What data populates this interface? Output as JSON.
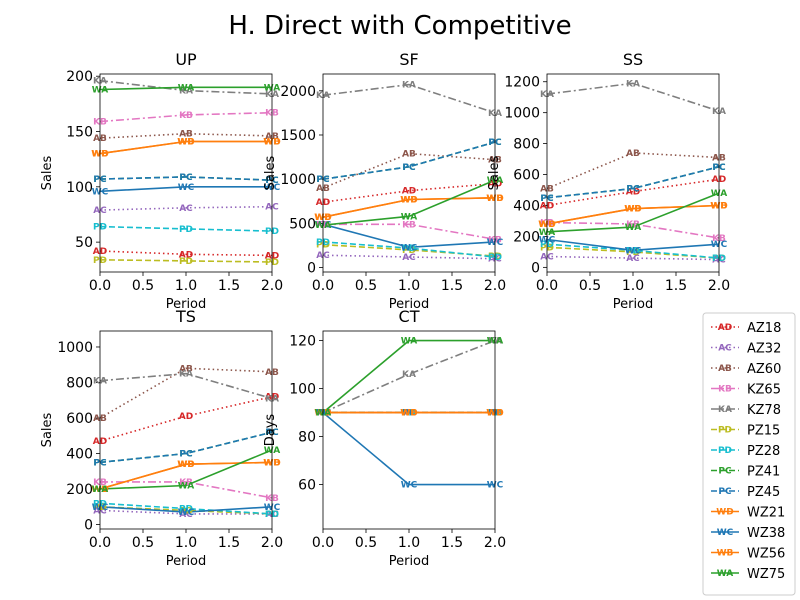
{
  "chart_data": {
    "title": "H. Direct with Competitive",
    "type": "line",
    "x": [
      0,
      1,
      2
    ],
    "legend": {
      "placement": "right",
      "entries": [
        {
          "name": "AZ18",
          "marker": "AD",
          "color": "#d62728",
          "style": "dotted"
        },
        {
          "name": "AZ32",
          "marker": "AC",
          "color": "#9467bd",
          "style": "dotted"
        },
        {
          "name": "AZ60",
          "marker": "AB",
          "color": "#8c564b",
          "style": "dotted"
        },
        {
          "name": "KZ65",
          "marker": "KB",
          "color": "#e377c2",
          "style": "dashdot"
        },
        {
          "name": "KZ78",
          "marker": "KA",
          "color": "#7f7f7f",
          "style": "dashdot"
        },
        {
          "name": "PZ15",
          "marker": "PD",
          "color": "#bcbd22",
          "style": "dashed"
        },
        {
          "name": "PZ28",
          "marker": "PD",
          "color": "#17becf",
          "style": "dashed"
        },
        {
          "name": "PZ41",
          "marker": "PC",
          "color": "#2ca02c",
          "style": "dashed"
        },
        {
          "name": "PZ45",
          "marker": "PC",
          "color": "#1f77b4",
          "style": "dashed"
        },
        {
          "name": "WZ21",
          "marker": "WD",
          "color": "#ff7f0e",
          "style": "solid"
        },
        {
          "name": "WZ38",
          "marker": "WC",
          "color": "#1f77b4",
          "style": "solid"
        },
        {
          "name": "WZ56",
          "marker": "WB",
          "color": "#ff7f0e",
          "style": "solid"
        },
        {
          "name": "WZ75",
          "marker": "WA",
          "color": "#2ca02c",
          "style": "solid"
        }
      ]
    },
    "panels": [
      {
        "title": "UP",
        "xlabel": "Period",
        "ylabel": "Sales",
        "xlim": [
          0,
          2
        ],
        "ylim": [
          23,
          202
        ],
        "xticks": [
          "0.0",
          "0.5",
          "1.0",
          "1.5",
          "2.0"
        ],
        "yticks": [
          50,
          100,
          150,
          200
        ],
        "series": [
          {
            "name": "AZ18",
            "values": [
              42,
              39,
              38
            ]
          },
          {
            "name": "AZ32",
            "values": [
              79,
              81,
              82
            ]
          },
          {
            "name": "AZ60",
            "values": [
              144,
              148,
              146
            ]
          },
          {
            "name": "KZ65",
            "values": [
              159,
              165,
              167
            ]
          },
          {
            "name": "KZ78",
            "values": [
              196,
              187,
              184
            ]
          },
          {
            "name": "PZ15",
            "values": [
              34,
              33,
              32
            ]
          },
          {
            "name": "PZ28",
            "values": [
              64,
              62,
              60
            ]
          },
          {
            "name": "PZ41",
            "values": [
              107,
              109,
              106
            ]
          },
          {
            "name": "PZ45",
            "values": [
              107,
              109,
              106
            ]
          },
          {
            "name": "WZ21",
            "values": [
              130,
              141,
              141
            ]
          },
          {
            "name": "WZ38",
            "values": [
              96,
              100,
              100
            ]
          },
          {
            "name": "WZ56",
            "values": [
              130,
              141,
              141
            ]
          },
          {
            "name": "WZ75",
            "values": [
              188,
              190,
              190
            ]
          }
        ]
      },
      {
        "title": "SF",
        "xlabel": "Period",
        "ylabel": "Sales",
        "xlim": [
          0,
          2
        ],
        "ylim": [
          -50,
          2190
        ],
        "xticks": [
          "0.0",
          "0.5",
          "1.0",
          "1.5",
          "2.0"
        ],
        "yticks": [
          0,
          500,
          1000,
          1500,
          2000
        ],
        "series": [
          {
            "name": "AZ18",
            "values": [
              740,
              870,
              950
            ]
          },
          {
            "name": "AZ32",
            "values": [
              140,
              120,
              100
            ]
          },
          {
            "name": "AZ60",
            "values": [
              900,
              1290,
              1220
            ]
          },
          {
            "name": "KZ65",
            "values": [
              490,
              490,
              320
            ]
          },
          {
            "name": "KZ78",
            "values": [
              1950,
              2070,
              1750
            ]
          },
          {
            "name": "PZ15",
            "values": [
              260,
              200,
              130
            ]
          },
          {
            "name": "PZ28",
            "values": [
              290,
              220,
              120
            ]
          },
          {
            "name": "PZ41",
            "values": [
              1000,
              1140,
              1420
            ]
          },
          {
            "name": "PZ45",
            "values": [
              1000,
              1140,
              1420
            ]
          },
          {
            "name": "WZ21",
            "values": [
              570,
              770,
              790
            ]
          },
          {
            "name": "WZ38",
            "values": [
              490,
              230,
              290
            ]
          },
          {
            "name": "WZ56",
            "values": [
              570,
              770,
              790
            ]
          },
          {
            "name": "WZ75",
            "values": [
              480,
              580,
              990
            ]
          }
        ]
      },
      {
        "title": "SS",
        "xlabel": "Period",
        "ylabel": "Sales",
        "xlim": [
          0,
          2
        ],
        "ylim": [
          -30,
          1250
        ],
        "xticks": [
          "0.0",
          "0.5",
          "1.0",
          "1.5",
          "2.0"
        ],
        "yticks": [
          0,
          200,
          400,
          600,
          800,
          1000,
          1200
        ],
        "series": [
          {
            "name": "AZ18",
            "values": [
              400,
              490,
              570
            ]
          },
          {
            "name": "AZ32",
            "values": [
              70,
              60,
              50
            ]
          },
          {
            "name": "AZ60",
            "values": [
              510,
              740,
              710
            ]
          },
          {
            "name": "KZ65",
            "values": [
              290,
              280,
              190
            ]
          },
          {
            "name": "KZ78",
            "values": [
              1120,
              1190,
              1010
            ]
          },
          {
            "name": "PZ15",
            "values": [
              130,
              100,
              60
            ]
          },
          {
            "name": "PZ28",
            "values": [
              150,
              110,
              60
            ]
          },
          {
            "name": "PZ41",
            "values": [
              450,
              510,
              650
            ]
          },
          {
            "name": "PZ45",
            "values": [
              450,
              510,
              650
            ]
          },
          {
            "name": "WZ21",
            "values": [
              280,
              380,
              400
            ]
          },
          {
            "name": "WZ38",
            "values": [
              180,
              110,
              150
            ]
          },
          {
            "name": "WZ56",
            "values": [
              280,
              380,
              400
            ]
          },
          {
            "name": "WZ75",
            "values": [
              230,
              260,
              480
            ]
          }
        ]
      },
      {
        "title": "TS",
        "xlabel": "Period",
        "ylabel": "Sales",
        "xlim": [
          0,
          2
        ],
        "ylim": [
          -25,
          1090
        ],
        "xticks": [
          "0.0",
          "0.5",
          "1.0",
          "1.5",
          "2.0"
        ],
        "yticks": [
          0,
          200,
          400,
          600,
          800,
          1000
        ],
        "series": [
          {
            "name": "AZ18",
            "values": [
              470,
              610,
              720
            ]
          },
          {
            "name": "AZ32",
            "values": [
              80,
              60,
              60
            ]
          },
          {
            "name": "AZ60",
            "values": [
              600,
              880,
              860
            ]
          },
          {
            "name": "KZ65",
            "values": [
              240,
              240,
              150
            ]
          },
          {
            "name": "KZ78",
            "values": [
              810,
              850,
              710
            ]
          },
          {
            "name": "PZ15",
            "values": [
              100,
              80,
              60
            ]
          },
          {
            "name": "PZ28",
            "values": [
              120,
              90,
              60
            ]
          },
          {
            "name": "PZ41",
            "values": [
              350,
              400,
              520
            ]
          },
          {
            "name": "PZ45",
            "values": [
              350,
              400,
              520
            ]
          },
          {
            "name": "WZ21",
            "values": [
              200,
              340,
              350
            ]
          },
          {
            "name": "WZ38",
            "values": [
              100,
              70,
              100
            ]
          },
          {
            "name": "WZ56",
            "values": [
              200,
              340,
              350
            ]
          },
          {
            "name": "WZ75",
            "values": [
              200,
              220,
              420
            ]
          }
        ]
      },
      {
        "title": "CT",
        "xlabel": "Period",
        "ylabel": "Days",
        "xlim": [
          0,
          2
        ],
        "ylim": [
          41.5,
          124
        ],
        "xticks": [
          "0.0",
          "0.5",
          "1.0",
          "1.5",
          "2.0"
        ],
        "yticks": [
          60,
          80,
          100,
          120
        ],
        "series": [
          {
            "name": "AZ18",
            "values": [
              90,
              90,
              90
            ]
          },
          {
            "name": "AZ32",
            "values": [
              90,
              90,
              90
            ]
          },
          {
            "name": "AZ60",
            "values": [
              90,
              90,
              90
            ]
          },
          {
            "name": "KZ65",
            "values": [
              90,
              90,
              90
            ]
          },
          {
            "name": "KZ78",
            "values": [
              90,
              106,
              120
            ]
          },
          {
            "name": "PZ15",
            "values": [
              90,
              90,
              90
            ]
          },
          {
            "name": "PZ28",
            "values": [
              90,
              90,
              90
            ]
          },
          {
            "name": "PZ41",
            "values": [
              90,
              90,
              90
            ]
          },
          {
            "name": "PZ45",
            "values": [
              90,
              90,
              90
            ]
          },
          {
            "name": "WZ21",
            "values": [
              90,
              90,
              90
            ]
          },
          {
            "name": "WZ38",
            "values": [
              90,
              60,
              60
            ]
          },
          {
            "name": "WZ56",
            "values": [
              90,
              90,
              90
            ]
          },
          {
            "name": "WZ75",
            "values": [
              90,
              120,
              120
            ]
          }
        ]
      }
    ]
  }
}
